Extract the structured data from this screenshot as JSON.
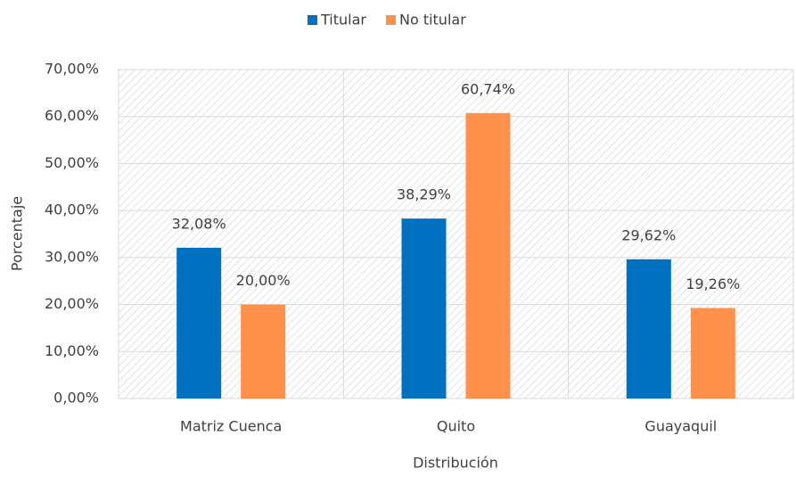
{
  "chart_data": {
    "type": "bar",
    "categories": [
      "Matriz Cuenca",
      "Quito",
      "Guayaquil"
    ],
    "series": [
      {
        "name": "Titular",
        "color": "#0070c0",
        "values": [
          32.08,
          38.29,
          29.62
        ],
        "value_labels": [
          "32,08%",
          "38,29%",
          "29,62%"
        ]
      },
      {
        "name": "No titular",
        "color": "#ff914d",
        "values": [
          20.0,
          60.74,
          19.26
        ],
        "value_labels": [
          "20,00%",
          "60,74%",
          "19,26%"
        ]
      }
    ],
    "xlabel": "Distribución",
    "ylabel": "Porcentaje",
    "ylim": [
      0,
      70
    ],
    "yticks": [
      {
        "value": 0,
        "label": "0,00%"
      },
      {
        "value": 10,
        "label": "10,00%"
      },
      {
        "value": 20,
        "label": "20,00%"
      },
      {
        "value": 30,
        "label": "30,00%"
      },
      {
        "value": 40,
        "label": "40,00%"
      },
      {
        "value": 50,
        "label": "50,00%"
      },
      {
        "value": 60,
        "label": "60,00%"
      },
      {
        "value": 70,
        "label": "70,00%"
      }
    ],
    "grid": true,
    "legend": "top"
  }
}
